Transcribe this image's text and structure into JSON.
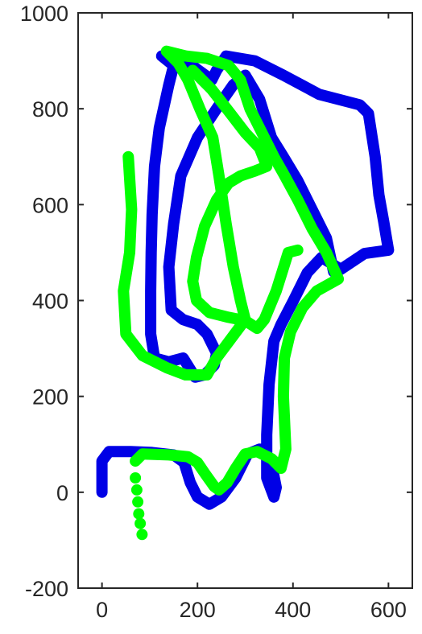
{
  "chart_data": {
    "type": "line",
    "title": "",
    "xlabel": "",
    "ylabel": "",
    "xlim": [
      -50,
      650
    ],
    "ylim": [
      -200,
      1000
    ],
    "x_ticks": [
      0,
      200,
      400,
      600
    ],
    "x_tick_labels": [
      "0",
      "200",
      "400",
      "600"
    ],
    "y_ticks": [
      -200,
      0,
      200,
      400,
      600,
      800,
      1000
    ],
    "y_tick_labels": [
      "-200",
      "0",
      "200",
      "400",
      "600",
      "800",
      "1000"
    ],
    "grid": false,
    "legend": "none",
    "series": [
      {
        "color": "#0000e6",
        "style": "solid",
        "points": [
          [
            0,
            0
          ],
          [
            0,
            65
          ],
          [
            15,
            85
          ],
          [
            60,
            85
          ],
          [
            105,
            83
          ],
          [
            150,
            78
          ],
          [
            172,
            62
          ],
          [
            185,
            20
          ],
          [
            200,
            -10
          ],
          [
            225,
            -25
          ],
          [
            250,
            -10
          ],
          [
            280,
            30
          ],
          [
            305,
            80
          ],
          [
            330,
            90
          ],
          [
            355,
            60
          ],
          [
            365,
            10
          ],
          [
            360,
            -10
          ],
          [
            345,
            30
          ],
          [
            345,
            120
          ],
          [
            350,
            225
          ],
          [
            360,
            315
          ],
          [
            375,
            350
          ],
          [
            400,
            398
          ],
          [
            430,
            458
          ],
          [
            460,
            490
          ],
          [
            500,
            465
          ],
          [
            550,
            498
          ],
          [
            600,
            505
          ],
          [
            590,
            565
          ],
          [
            580,
            620
          ],
          [
            572,
            700
          ],
          [
            558,
            790
          ],
          [
            540,
            808
          ],
          [
            455,
            830
          ],
          [
            380,
            870
          ],
          [
            320,
            900
          ],
          [
            260,
            910
          ],
          [
            240,
            880
          ],
          [
            230,
            860
          ],
          [
            175,
            900
          ],
          [
            125,
            910
          ],
          [
            150,
            890
          ],
          [
            140,
            850
          ],
          [
            120,
            760
          ],
          [
            110,
            680
          ],
          [
            105,
            580
          ],
          [
            103,
            500
          ],
          [
            102,
            420
          ],
          [
            102,
            330
          ],
          [
            110,
            280
          ],
          [
            140,
            272
          ],
          [
            170,
            280
          ],
          [
            195,
            240
          ],
          [
            215,
            245
          ],
          [
            235,
            265
          ],
          [
            240,
            290
          ],
          [
            220,
            330
          ],
          [
            200,
            350
          ],
          [
            170,
            360
          ],
          [
            145,
            380
          ],
          [
            140,
            470
          ],
          [
            150,
            560
          ],
          [
            165,
            660
          ],
          [
            200,
            740
          ],
          [
            240,
            800
          ],
          [
            275,
            850
          ],
          [
            300,
            870
          ],
          [
            330,
            820
          ],
          [
            355,
            740
          ],
          [
            380,
            700
          ],
          [
            410,
            650
          ],
          [
            440,
            590
          ],
          [
            470,
            530
          ],
          [
            485,
            460
          ]
        ]
      },
      {
        "color": "#00ff00",
        "style": "solid",
        "points": [
          [
            70,
            65
          ],
          [
            85,
            80
          ],
          [
            140,
            78
          ],
          [
            180,
            74
          ],
          [
            200,
            62
          ],
          [
            215,
            40
          ],
          [
            235,
            12
          ],
          [
            245,
            5
          ],
          [
            262,
            20
          ],
          [
            280,
            50
          ],
          [
            300,
            80
          ],
          [
            325,
            85
          ],
          [
            355,
            70
          ],
          [
            375,
            50
          ],
          [
            385,
            90
          ],
          [
            380,
            200
          ],
          [
            382,
            280
          ],
          [
            395,
            335
          ],
          [
            420,
            385
          ],
          [
            450,
            420
          ],
          [
            495,
            445
          ],
          [
            470,
            500
          ],
          [
            440,
            550
          ],
          [
            410,
            610
          ],
          [
            380,
            665
          ],
          [
            360,
            700
          ],
          [
            340,
            740
          ],
          [
            310,
            800
          ],
          [
            290,
            860
          ],
          [
            265,
            890
          ],
          [
            220,
            905
          ],
          [
            175,
            910
          ],
          [
            135,
            920
          ],
          [
            160,
            895
          ],
          [
            180,
            860
          ],
          [
            205,
            800
          ],
          [
            232,
            740
          ],
          [
            245,
            660
          ],
          [
            260,
            560
          ],
          [
            275,
            470
          ],
          [
            290,
            400
          ],
          [
            300,
            360
          ],
          [
            240,
            280
          ],
          [
            220,
            245
          ],
          [
            175,
            245
          ],
          [
            135,
            260
          ],
          [
            85,
            285
          ],
          [
            50,
            330
          ],
          [
            45,
            420
          ],
          [
            58,
            500
          ],
          [
            62,
            590
          ],
          [
            55,
            700
          ]
        ]
      },
      {
        "color": "#00ff00",
        "style": "solid",
        "points": [
          [
            190,
            880
          ],
          [
            230,
            840
          ],
          [
            265,
            795
          ],
          [
            300,
            750
          ],
          [
            330,
            718
          ],
          [
            345,
            680
          ],
          [
            320,
            670
          ],
          [
            290,
            660
          ],
          [
            265,
            645
          ],
          [
            240,
            610
          ],
          [
            215,
            555
          ],
          [
            198,
            490
          ],
          [
            190,
            440
          ],
          [
            198,
            400
          ],
          [
            225,
            375
          ],
          [
            265,
            365
          ],
          [
            300,
            358
          ],
          [
            325,
            342
          ],
          [
            340,
            360
          ],
          [
            365,
            420
          ],
          [
            390,
            500
          ],
          [
            410,
            505
          ]
        ]
      },
      {
        "color": "#00ff00",
        "style": "dotted",
        "points": [
          [
            70,
            30
          ],
          [
            73,
            5
          ],
          [
            75,
            -20
          ],
          [
            77,
            -45
          ],
          [
            80,
            -65
          ],
          [
            84,
            -88
          ]
        ]
      }
    ]
  }
}
